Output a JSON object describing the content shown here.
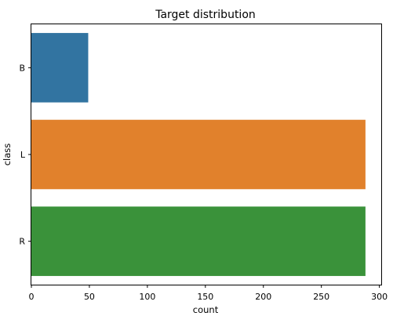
{
  "chart_data": {
    "type": "bar",
    "orientation": "horizontal",
    "title": "Target distribution",
    "xlabel": "count",
    "ylabel": "class",
    "categories": [
      "B",
      "L",
      "R"
    ],
    "values": [
      49,
      288,
      288
    ],
    "xlim": [
      0,
      300
    ],
    "xticks": [
      0,
      50,
      100,
      150,
      200,
      250,
      300
    ],
    "colors": [
      "#3274a1",
      "#e1812c",
      "#3a923a"
    ],
    "grid": false
  }
}
